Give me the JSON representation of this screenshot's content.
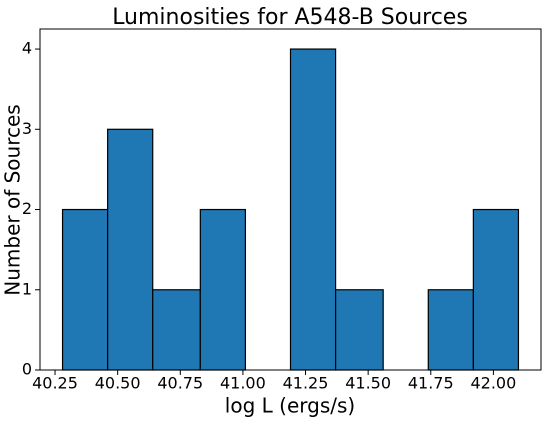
{
  "chart_data": {
    "type": "histogram",
    "title": "Luminosities for A548-B Sources",
    "x_label": "log L (ergs/s)",
    "y_label": "Number of Sources",
    "bins": [
      40.28,
      40.46,
      40.64,
      40.83,
      41.01,
      41.19,
      41.37,
      41.56,
      41.74,
      41.92,
      42.1
    ],
    "values": [
      2,
      3,
      1,
      2,
      0,
      4,
      1,
      0,
      1,
      2
    ],
    "color": "#1f77b4",
    "edgecolor": "#000000",
    "xlim": [
      40.19,
      42.19
    ],
    "ylim": [
      0,
      4.25
    ],
    "xticks": [
      {
        "value": 40.25,
        "label": "40.25"
      },
      {
        "value": 40.5,
        "label": "40.50"
      },
      {
        "value": 40.75,
        "label": "40.75"
      },
      {
        "value": 41,
        "label": "41.00"
      },
      {
        "value": 41.25,
        "label": "41.25"
      },
      {
        "value": 41.5,
        "label": "41.50"
      },
      {
        "value": 41.75,
        "label": "41.75"
      },
      {
        "value": 42,
        "label": "42.00"
      }
    ],
    "yticks": [
      0,
      1,
      2,
      3,
      4
    ]
  }
}
